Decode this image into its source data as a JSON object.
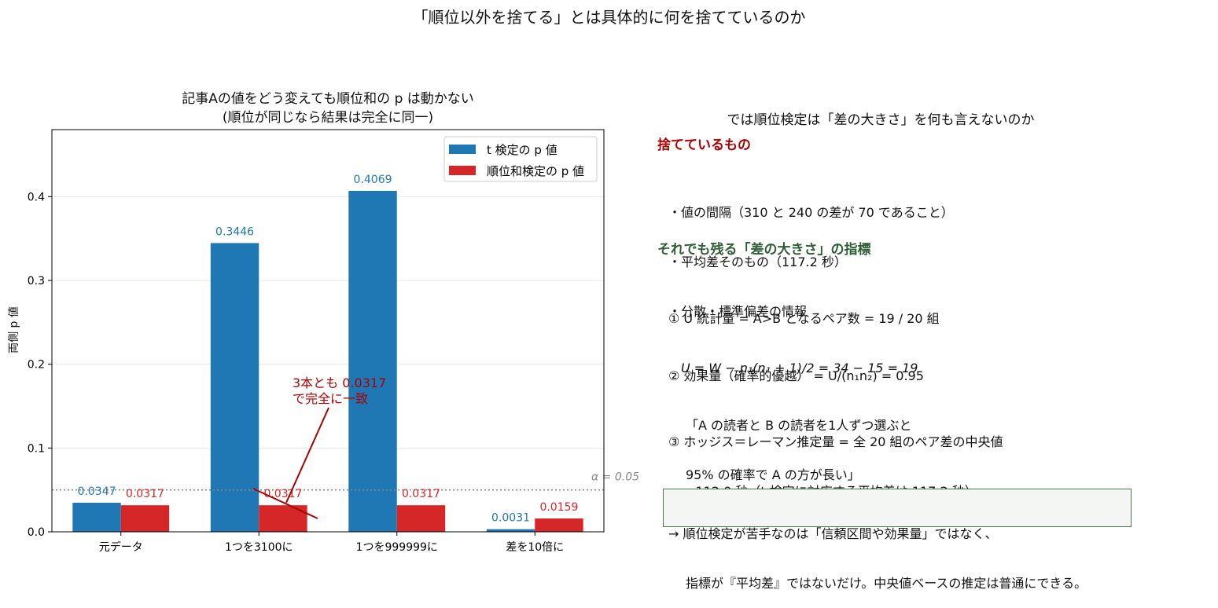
{
  "figure": {
    "suptitle": "「順位以外を捨てる」とは具体的に何を捨てているのか"
  },
  "chart_data": {
    "type": "bar",
    "title_line1": "記事Aの値をどう変えても順位和の p は動かない",
    "title_line2": "(順位が同じなら結果は完全に同一)",
    "xlabel": "",
    "ylabel": "両側 p 値",
    "categories": [
      "元データ",
      "1つを3100に",
      "1つを999999に",
      "差を10倍に"
    ],
    "series": [
      {
        "name": "t 検定の p 値",
        "color": "#1f77b4",
        "values": [
          0.0347,
          0.3446,
          0.4069,
          0.0031
        ],
        "labels": [
          "0.0347",
          "0.3446",
          "0.4069",
          "0.0031"
        ]
      },
      {
        "name": "順位和検定の p 値",
        "color": "#d62728",
        "values": [
          0.0317,
          0.0317,
          0.0317,
          0.0159
        ],
        "labels": [
          "0.0317",
          "0.0317",
          "0.0317",
          "0.0159"
        ]
      }
    ],
    "ylim": [
      0,
      0.48
    ],
    "yticks": [
      0.0,
      0.1,
      0.2,
      0.3,
      0.4
    ],
    "ytick_labels": [
      "0.0",
      "0.1",
      "0.2",
      "0.3",
      "0.4"
    ],
    "grid": "horizontal",
    "legend_position": "upper-right",
    "threshold": {
      "value": 0.05,
      "label": "α = 0.05",
      "style": "dotted",
      "color": "#888888"
    },
    "annotation": {
      "line1": "3本とも 0.0317",
      "line2": "で完全に一致",
      "color": "#aa0000"
    }
  },
  "right_panel": {
    "title": "では順位検定は「差の大きさ」を何も言えないのか",
    "discard_heading": "捨てているもの",
    "discard_heading_color": "#aa0000",
    "discard_items": [
      "・値の間隔（310 と 240 の差が 70 であること）",
      "・平均差そのもの（117.2 秒）",
      "・分散・標準偏差の情報"
    ],
    "remain_heading": "それでも残る「差の大きさ」の指標",
    "remain_heading_color": "#2f5e35",
    "item1_line1": "① U 統計量 = A>B となるペア数 = 19 / 20 組",
    "item1_line2": "U = W − n₁(n₁ + 1)/2 = 34 − 15 = 19",
    "item2_line1": "② 効果量（確率的優越） = U/(n₁n₂) = 0.95",
    "item2_line2": "「A の読者と B の読者を1人ずつ選ぶと",
    "item2_line3": "95% の確率で A の方が長い」",
    "item3_line1": "③ ホッジス＝レーマン推定量 = 全 20 組のペア差の中央値",
    "item3_line2": "= 112.0 秒（t 検定に対応する平均差は 117.2 秒）",
    "note_line1": "→ 順位検定が苦手なのは「信頼区間や効果量」ではなく、",
    "note_line2": "指標が『平均差』ではないだけ。中央値ベースの推定は普通にできる。"
  }
}
